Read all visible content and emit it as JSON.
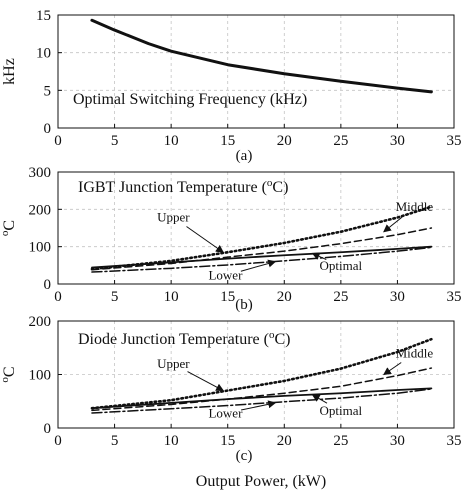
{
  "figure": {
    "xlabel": "Output Power, (kW)"
  },
  "chart_data": [
    {
      "type": "line",
      "panel_label": "(a)",
      "title": "Optimal Switching Frequency (kHz)",
      "ylabel": "kHz",
      "xlim": [
        0,
        35
      ],
      "ylim": [
        0,
        15
      ],
      "xticks": [
        0,
        5,
        10,
        15,
        20,
        25,
        30,
        35
      ],
      "yticks": [
        0,
        5,
        10,
        15
      ],
      "grid": true,
      "series": [
        {
          "style": "solid-thick",
          "x": [
            3,
            5,
            8,
            10,
            15,
            20,
            25,
            30,
            33
          ],
          "y": [
            14.3,
            13.0,
            11.2,
            10.2,
            8.4,
            7.2,
            6.2,
            5.3,
            4.8
          ]
        }
      ],
      "annotations": []
    },
    {
      "type": "line",
      "panel_label": "(b)",
      "title": "IGBT Junction Temperature (",
      "title_sup": "o",
      "title_end": "C)",
      "ylabel_sup": "o",
      "ylabel": "C",
      "xlim": [
        0,
        35
      ],
      "ylim": [
        0,
        300
      ],
      "xticks": [
        0,
        5,
        10,
        15,
        20,
        25,
        30,
        35
      ],
      "yticks": [
        0,
        100,
        200,
        300
      ],
      "grid": true,
      "series": [
        {
          "name": "Upper",
          "style": "dotted",
          "x": [
            3,
            10,
            15,
            20,
            25,
            30,
            33
          ],
          "y": [
            40,
            62,
            85,
            110,
            140,
            178,
            207
          ]
        },
        {
          "name": "Middle",
          "style": "dashed",
          "x": [
            3,
            10,
            15,
            20,
            25,
            30,
            33
          ],
          "y": [
            38,
            55,
            72,
            88,
            108,
            132,
            150
          ]
        },
        {
          "name": "Optimal",
          "style": "solid",
          "x": [
            3,
            10,
            15,
            20,
            25,
            30,
            33
          ],
          "y": [
            44,
            58,
            68,
            77,
            85,
            94,
            100
          ]
        },
        {
          "name": "Lower",
          "style": "dashdot",
          "x": [
            3,
            10,
            15,
            20,
            25,
            30,
            33
          ],
          "y": [
            32,
            42,
            51,
            62,
            74,
            88,
            98
          ]
        }
      ],
      "annotations": [
        {
          "text": "Upper",
          "x": 10.2,
          "y": 168,
          "arrow_to": [
            14.6,
            85
          ]
        },
        {
          "text": "Middle",
          "x": 31.5,
          "y": 195,
          "arrow_to": [
            28.8,
            140
          ]
        },
        {
          "text": "Lower",
          "x": 14.8,
          "y": 12,
          "arrow_to": [
            19.2,
            60
          ]
        },
        {
          "text": "Optimal",
          "x": 25.0,
          "y": 37,
          "arrow_to": [
            22.5,
            82
          ]
        }
      ]
    },
    {
      "type": "line",
      "panel_label": "(c)",
      "title": "Diode Junction Temperature (",
      "title_sup": "o",
      "title_end": "C)",
      "ylabel_sup": "o",
      "ylabel": "C",
      "xlim": [
        0,
        35
      ],
      "ylim": [
        0,
        200
      ],
      "xticks": [
        0,
        5,
        10,
        15,
        20,
        25,
        30,
        35
      ],
      "yticks": [
        0,
        100,
        200
      ],
      "grid": true,
      "series": [
        {
          "name": "Upper",
          "style": "dotted",
          "x": [
            3,
            10,
            15,
            20,
            25,
            30,
            33
          ],
          "y": [
            37,
            52,
            70,
            88,
            111,
            142,
            166
          ]
        },
        {
          "name": "Middle",
          "style": "dashed",
          "x": [
            3,
            10,
            15,
            20,
            25,
            30,
            33
          ],
          "y": [
            33,
            44,
            54,
            65,
            78,
            98,
            112
          ]
        },
        {
          "name": "Optimal",
          "style": "solid",
          "x": [
            3,
            10,
            15,
            20,
            25,
            30,
            33
          ],
          "y": [
            37,
            47,
            54,
            60,
            65,
            71,
            74
          ]
        },
        {
          "name": "Lower",
          "style": "dashdot",
          "x": [
            3,
            10,
            15,
            20,
            25,
            30,
            33
          ],
          "y": [
            28,
            36,
            42,
            49,
            56,
            65,
            73
          ]
        }
      ],
      "annotations": [
        {
          "text": "Upper",
          "x": 10.2,
          "y": 112,
          "arrow_to": [
            14.6,
            70
          ]
        },
        {
          "text": "Middle",
          "x": 31.5,
          "y": 132,
          "arrow_to": [
            28.8,
            100
          ]
        },
        {
          "text": "Lower",
          "x": 14.8,
          "y": 20,
          "arrow_to": [
            19.2,
            47
          ]
        },
        {
          "text": "Optimal",
          "x": 25.0,
          "y": 24,
          "arrow_to": [
            22.5,
            62
          ]
        }
      ]
    }
  ]
}
